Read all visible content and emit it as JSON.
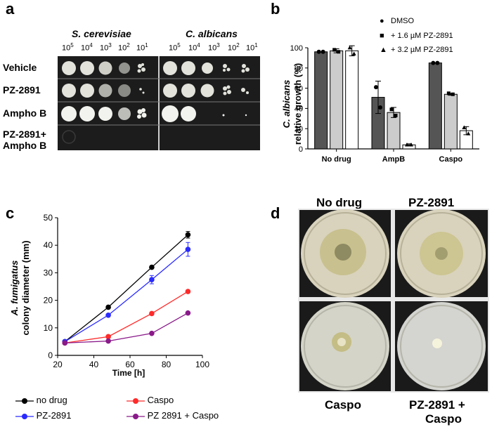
{
  "panels": {
    "a": "a",
    "b": "b",
    "c": "c",
    "d": "d"
  },
  "panel_a": {
    "species": [
      "S. cerevisiae",
      "C. albicans"
    ],
    "dilution_base": "10",
    "dilution_exponents": [
      "5",
      "4",
      "3",
      "2",
      "1"
    ],
    "row_labels": [
      "Vehicle",
      "PZ-2891",
      "Ampho B",
      "PZ-2891+",
      "Ampho B"
    ],
    "colors": {
      "plate": "#1c1c1c",
      "separator": "#cfcfcf",
      "colony": "#e3e3dc"
    }
  },
  "panel_d": {
    "labels": [
      "No drug",
      "PZ-2891",
      "Caspo",
      "PZ-2891 +",
      "Caspo"
    ],
    "colors": {
      "background": "#1a1a1a",
      "agar": "#d9d3bd",
      "colony": "#c8c08e"
    }
  },
  "chart_data": [
    {
      "type": "bar",
      "panel": "b",
      "categories": [
        "No drug",
        "AmpB",
        "Caspo"
      ],
      "ylabel_species": "C. albicans",
      "ylabel": "relative growth (%)",
      "ylim": [
        0,
        100
      ],
      "yticks": [
        "0",
        "20",
        "40",
        "60",
        "80",
        "100"
      ],
      "series": [
        {
          "name": "DMSO",
          "marker": "●",
          "color": "#555555",
          "values": [
            96,
            51,
            85
          ],
          "errors": [
            0,
            16,
            0
          ]
        },
        {
          "name": "+ 1.6 µM PZ-2891",
          "marker": "■",
          "color": "#cccccc",
          "values": [
            97,
            36,
            54
          ],
          "errors": [
            2,
            5,
            1
          ]
        },
        {
          "name": "+ 3.2 µM PZ-2891",
          "marker": "▲",
          "color": "#ffffff",
          "values": [
            97,
            4,
            18
          ],
          "errors": [
            5,
            1,
            4
          ]
        }
      ],
      "points": [
        [
          [
            96,
            96
          ],
          [
            98,
            96
          ],
          [
            100,
            94
          ]
        ],
        [
          [
            61,
            41
          ],
          [
            39,
            33
          ],
          [
            4,
            4
          ]
        ],
        [
          [
            85,
            85
          ],
          [
            55,
            54
          ],
          [
            21,
            15
          ]
        ]
      ]
    },
    {
      "type": "line",
      "panel": "c",
      "xlabel": "Time [h]",
      "ylabel_species": "A. fumigatus",
      "ylabel": "colony diameter (mm)",
      "xlim": [
        20,
        100
      ],
      "ylim": [
        0,
        50
      ],
      "xticks": [
        "20",
        "40",
        "60",
        "80",
        "100"
      ],
      "yticks": [
        "0",
        "10",
        "20",
        "30",
        "40",
        "50"
      ],
      "x": [
        24,
        48,
        72,
        92
      ],
      "series": [
        {
          "name": "no drug",
          "color": "#000000",
          "values": [
            5,
            17.5,
            32,
            43.8
          ],
          "errors": [
            0,
            0,
            0,
            1.2
          ]
        },
        {
          "name": "PZ-2891",
          "color": "#2a2aff",
          "values": [
            5,
            14.6,
            27.5,
            38.5
          ],
          "errors": [
            0,
            0,
            1.5,
            2.5
          ]
        },
        {
          "name": "Caspo",
          "color": "#ff2a2a",
          "values": [
            4.5,
            6.8,
            15.2,
            23.2
          ],
          "errors": [
            0,
            0,
            0,
            0
          ]
        },
        {
          "name": "PZ 2891 + Caspo",
          "color": "#8a1a8a",
          "values": [
            4.5,
            5.2,
            8,
            15.4
          ],
          "errors": [
            0,
            0,
            0,
            0
          ]
        }
      ]
    }
  ]
}
